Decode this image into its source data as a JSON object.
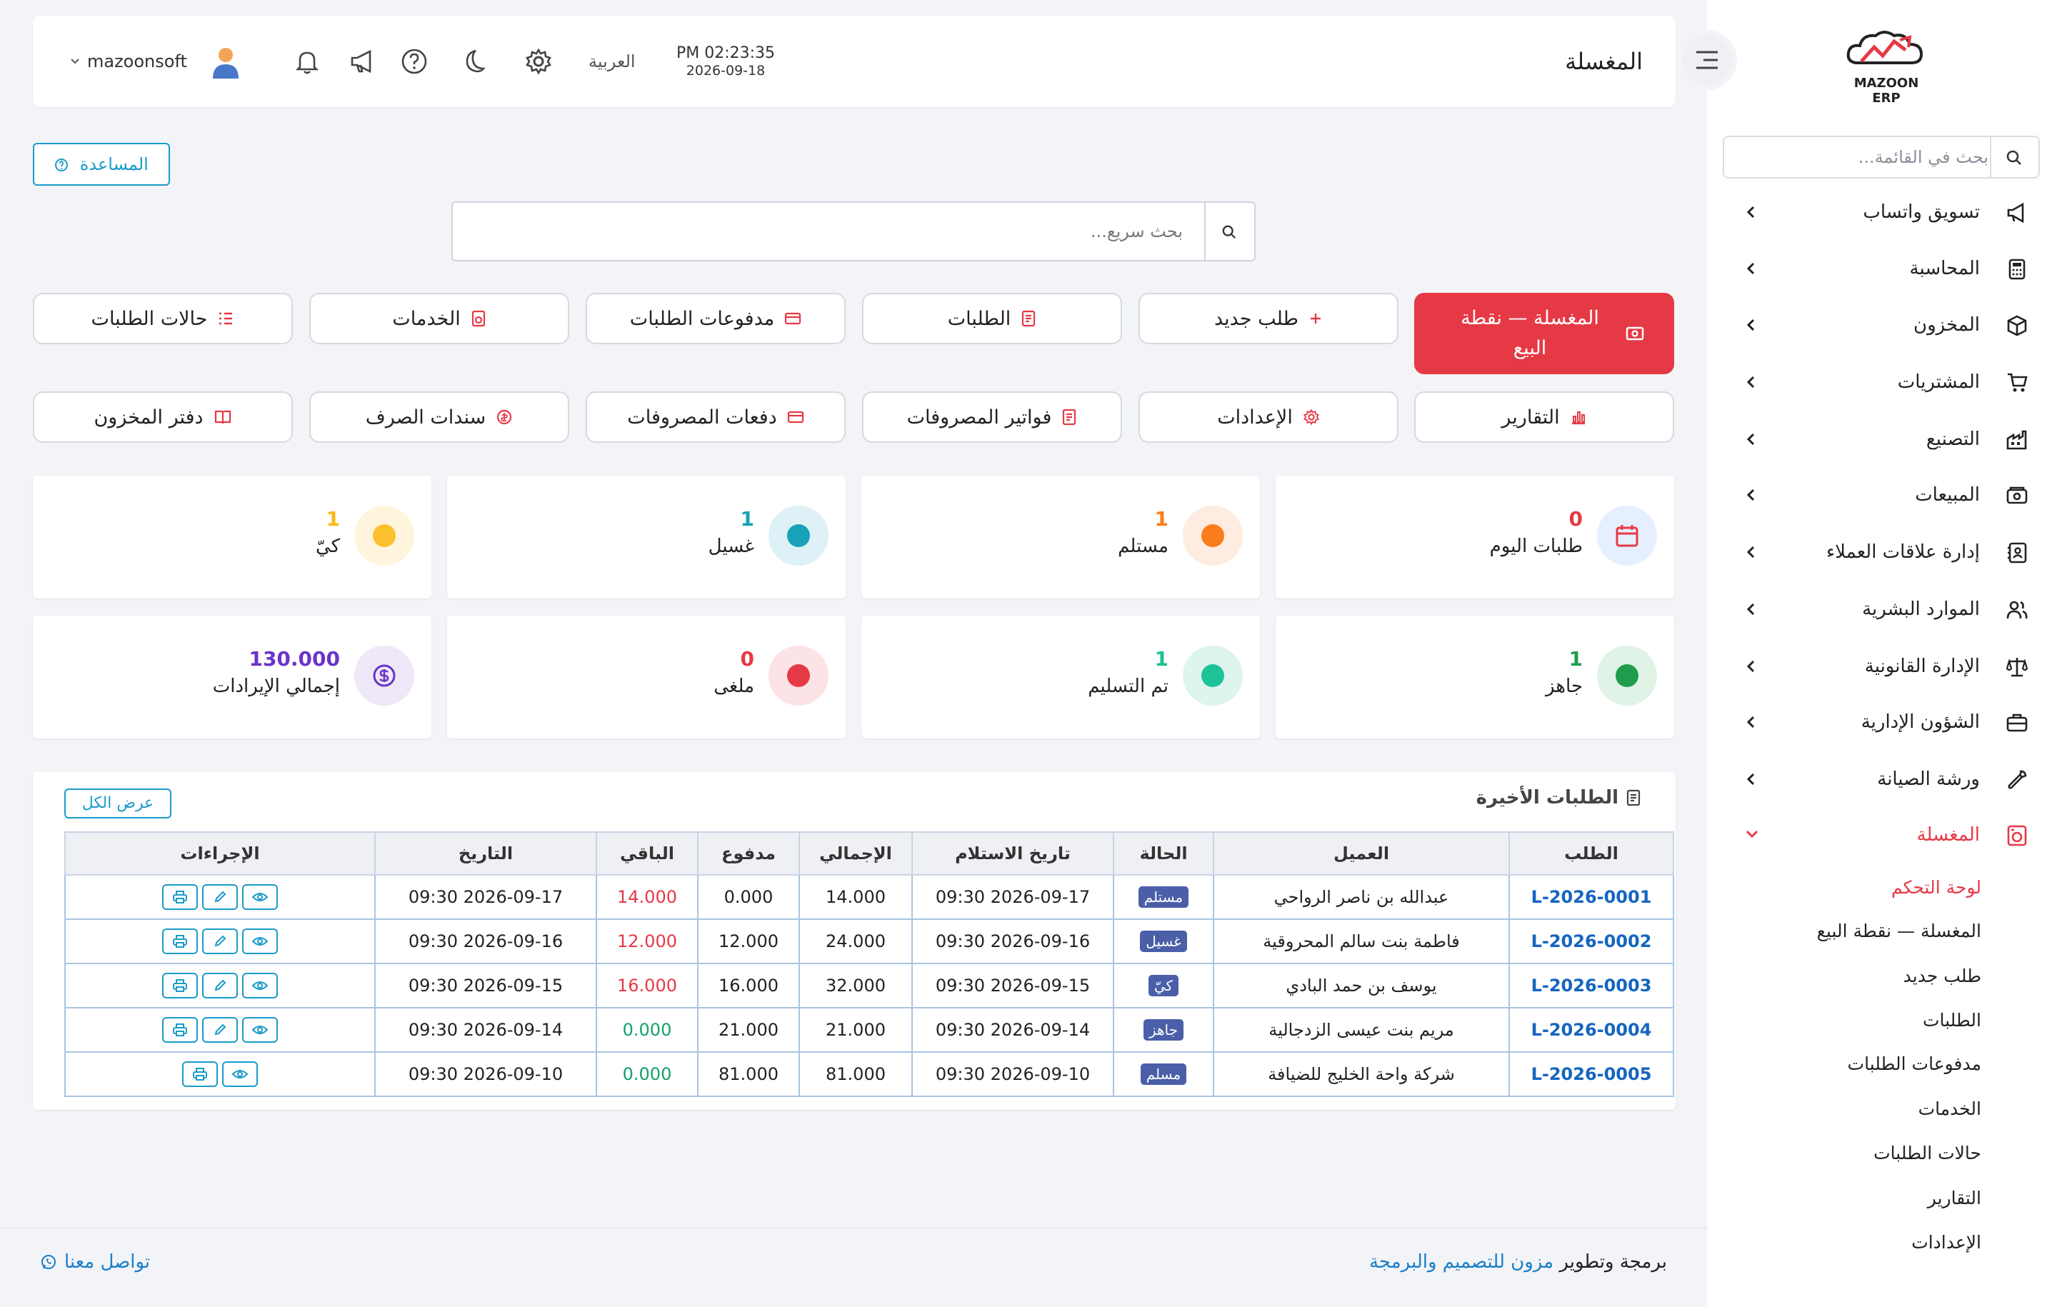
{
  "colors": {
    "accent": "#e63946",
    "link": "#1a9bc9",
    "badge": "#4a5fa8"
  },
  "brand": {
    "name": "MAZOON ERP"
  },
  "sidebar": {
    "search_placeholder": "بحث في القائمة...",
    "items": [
      {
        "label": "تسويق واتساب",
        "icon": "megaphone-icon"
      },
      {
        "label": "المحاسبة",
        "icon": "calculator-icon"
      },
      {
        "label": "المخزون",
        "icon": "box-icon"
      },
      {
        "label": "المشتريات",
        "icon": "cart-icon"
      },
      {
        "label": "التصنيع",
        "icon": "factory-icon"
      },
      {
        "label": "المبيعات",
        "icon": "cash-register-icon"
      },
      {
        "label": "إدارة علاقات العملاء",
        "icon": "contacts-icon"
      },
      {
        "label": "الموارد البشرية",
        "icon": "users-icon"
      },
      {
        "label": "الإدارة القانونية",
        "icon": "scale-icon"
      },
      {
        "label": "الشؤون الإدارية",
        "icon": "briefcase-icon"
      },
      {
        "label": "ورشة الصيانة",
        "icon": "wrench-icon"
      },
      {
        "label": "المغسلة",
        "icon": "laundry-icon"
      }
    ],
    "sub_items": [
      "لوحة التحكم",
      "المغسلة — نقطة البيع",
      "طلب جديد",
      "الطلبات",
      "مدفوعات الطلبات",
      "الخدمات",
      "حالات الطلبات",
      "التقارير",
      "الإعدادات"
    ]
  },
  "header": {
    "title": "المغسلة",
    "time": "PM 02:23:35",
    "date": "2026-09-18",
    "language": "العربية",
    "username": "mazoonsoft"
  },
  "help_label": "المساعدة",
  "quick_search_placeholder": "بحث سريع...",
  "actions": {
    "pos": "المغسلة — نقطة البيع",
    "new_order": "طلب جديد",
    "orders": "الطلبات",
    "order_payments": "مدفوعات الطلبات",
    "services": "الخدمات",
    "order_statuses": "حالات الطلبات",
    "reports": "التقارير",
    "settings": "الإعدادات",
    "expense_invoices": "فواتير المصروفات",
    "expense_payments": "دفعات المصروفات",
    "vouchers": "سندات الصرف",
    "inventory_book": "دفتر المخزون"
  },
  "stats": [
    {
      "label": "طلبات اليوم",
      "value": "0"
    },
    {
      "label": "مستلم",
      "value": "1"
    },
    {
      "label": "غسيل",
      "value": "1"
    },
    {
      "label": "كيّ",
      "value": "1"
    },
    {
      "label": "جاهز",
      "value": "1"
    },
    {
      "label": "تم التسليم",
      "value": "1"
    },
    {
      "label": "ملغى",
      "value": "0"
    },
    {
      "label": "إجمالي الإيرادات",
      "value": "130.000"
    }
  ],
  "recent": {
    "title": "الطلبات الأخيرة",
    "view_all": "عرض الكل",
    "columns": [
      "الطلب",
      "العميل",
      "الحالة",
      "تاريخ الاستلام",
      "الإجمالي",
      "مدفوع",
      "الباقي",
      "التاريخ",
      "الإجراءات"
    ],
    "rows": [
      {
        "id": "L-2026-0001",
        "customer": "عبدالله بن ناصر الرواحي",
        "status": "مستلم",
        "received": "2026-09-17 09:30",
        "total": "14.000",
        "paid": "0.000",
        "remaining": "14.000",
        "date": "2026-09-17 09:30"
      },
      {
        "id": "L-2026-0002",
        "customer": "فاطمة بنت سالم المحروقية",
        "status": "غسيل",
        "received": "2026-09-16 09:30",
        "total": "24.000",
        "paid": "12.000",
        "remaining": "12.000",
        "date": "2026-09-16 09:30"
      },
      {
        "id": "L-2026-0003",
        "customer": "يوسف بن حمد البادي",
        "status": "كيّ",
        "received": "2026-09-15 09:30",
        "total": "32.000",
        "paid": "16.000",
        "remaining": "16.000",
        "date": "2026-09-15 09:30"
      },
      {
        "id": "L-2026-0004",
        "customer": "مريم بنت عيسى الزدجالية",
        "status": "جاهز",
        "received": "2026-09-14 09:30",
        "total": "21.000",
        "paid": "21.000",
        "remaining": "0.000",
        "date": "2026-09-14 09:30"
      },
      {
        "id": "L-2026-0005",
        "customer": "شركة واحة الخليج للضيافة",
        "status": "مسلم",
        "received": "2026-09-10 09:30",
        "total": "81.000",
        "paid": "81.000",
        "remaining": "0.000",
        "date": "2026-09-10 09:30"
      }
    ]
  },
  "footer": {
    "prefix": "برمجة وتطوير",
    "company": "مزون للتصميم والبرمجة",
    "contact": "تواصل معنا"
  }
}
